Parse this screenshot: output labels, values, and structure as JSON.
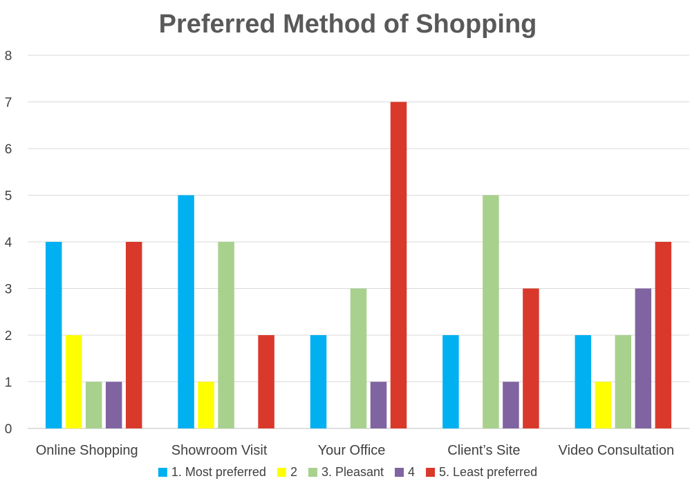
{
  "chart_data": {
    "type": "bar",
    "title": "Preferred Method of Shopping",
    "xlabel": "",
    "ylabel": "",
    "categories": [
      "Online Shopping",
      "Showroom Visit",
      "Your Office",
      "Client’s Site",
      "Video Consultation"
    ],
    "series": [
      {
        "name": "1. Most preferred",
        "color": "#00b0f0",
        "values": [
          4,
          5,
          2,
          2,
          2
        ]
      },
      {
        "name": "2",
        "color": "#ffff00",
        "values": [
          2,
          1,
          0,
          0,
          1
        ]
      },
      {
        "name": "3. Pleasant",
        "color": "#a9d18e",
        "values": [
          1,
          4,
          3,
          5,
          2
        ]
      },
      {
        "name": "4",
        "color": "#8064a2",
        "values": [
          1,
          0,
          1,
          1,
          3
        ]
      },
      {
        "name": "5. Least preferred",
        "color": "#d9392b",
        "values": [
          4,
          2,
          7,
          3,
          4
        ]
      }
    ],
    "ylim": [
      0,
      8
    ],
    "yticks": [
      "0",
      "1",
      "2",
      "3",
      "4",
      "5",
      "6",
      "7",
      "8"
    ],
    "grid": true,
    "legend_position": "bottom"
  }
}
